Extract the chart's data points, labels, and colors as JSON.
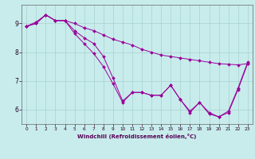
{
  "xlabel": "Windchill (Refroidissement éolien,°C)",
  "background_color": "#c8ecec",
  "grid_color": "#b0c8c8",
  "line_color": "#990099",
  "x": [
    0,
    1,
    2,
    3,
    4,
    5,
    6,
    7,
    8,
    9,
    10,
    11,
    12,
    13,
    14,
    15,
    16,
    17,
    18,
    19,
    20,
    21,
    22,
    23
  ],
  "curve_smooth": [
    8.9,
    9.0,
    9.3,
    9.1,
    9.1,
    9.0,
    8.85,
    8.75,
    8.6,
    8.45,
    8.35,
    8.25,
    8.1,
    8.0,
    7.9,
    7.85,
    7.8,
    7.75,
    7.7,
    7.65,
    7.6,
    7.58,
    7.56,
    7.6
  ],
  "curve_mid": [
    8.9,
    9.0,
    9.3,
    9.1,
    9.1,
    8.75,
    8.5,
    8.3,
    7.85,
    7.1,
    6.3,
    6.6,
    6.6,
    6.5,
    6.5,
    6.85,
    6.35,
    5.95,
    6.25,
    5.9,
    5.75,
    5.95,
    6.75,
    7.65
  ],
  "curve_low": [
    8.9,
    9.05,
    9.3,
    9.1,
    9.1,
    8.65,
    8.3,
    7.95,
    7.5,
    6.9,
    6.25,
    6.6,
    6.6,
    6.5,
    6.5,
    6.85,
    6.35,
    5.9,
    6.25,
    5.85,
    5.75,
    5.9,
    6.7,
    7.6
  ],
  "ylim": [
    5.5,
    9.65
  ],
  "yticks": [
    6,
    7,
    8,
    9
  ],
  "xticks": [
    0,
    1,
    2,
    3,
    4,
    5,
    6,
    7,
    8,
    9,
    10,
    11,
    12,
    13,
    14,
    15,
    16,
    17,
    18,
    19,
    20,
    21,
    22,
    23
  ]
}
